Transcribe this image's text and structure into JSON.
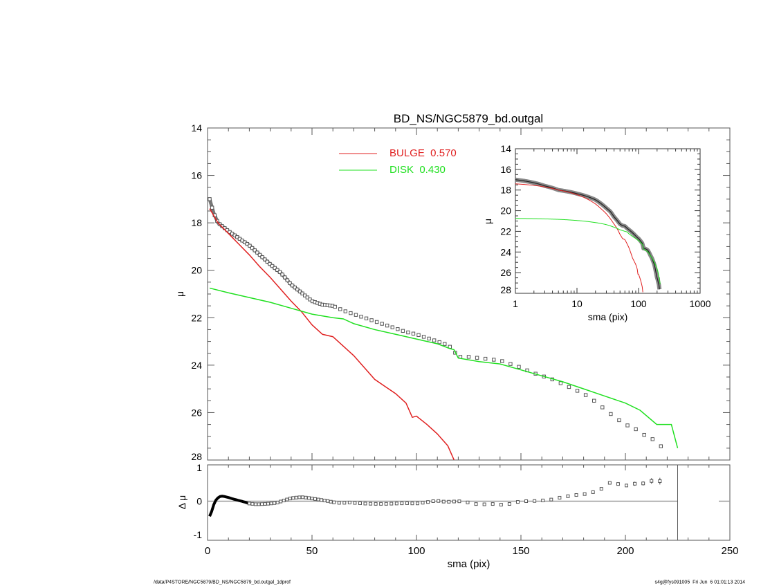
{
  "chart_data": [
    {
      "type": "line",
      "title": "BD_NS/NGC5879_bd.outgal",
      "xlabel": "",
      "ylabel": "μ",
      "xlim": [
        0,
        250
      ],
      "ylim": [
        28,
        14
      ],
      "yticks": [
        "14",
        "16",
        "18",
        "20",
        "22",
        "24",
        "26",
        "28"
      ],
      "legend": {
        "placement": "top-center",
        "entries": [
          {
            "label": "BULGE  0.570",
            "color": "#e02020"
          },
          {
            "label": "DISK  0.430",
            "color": "#20e020"
          }
        ]
      },
      "series": [
        {
          "name": "observed",
          "color": "#555555",
          "style": "squares",
          "x": [
            1,
            3,
            5,
            10,
            15,
            20,
            25,
            30,
            35,
            40,
            45,
            50,
            55,
            60,
            65,
            70,
            75,
            80,
            85,
            90,
            95,
            100,
            105,
            110,
            115,
            117,
            120,
            125,
            130,
            135,
            140,
            145,
            150,
            155,
            160,
            165,
            170,
            175,
            180,
            185,
            190,
            195,
            200,
            205,
            210,
            215,
            220
          ],
          "y": [
            17.0,
            17.6,
            18.0,
            18.35,
            18.65,
            18.95,
            19.35,
            19.75,
            20.1,
            20.6,
            20.95,
            21.3,
            21.45,
            21.5,
            21.7,
            21.85,
            22.0,
            22.15,
            22.3,
            22.45,
            22.6,
            22.7,
            22.85,
            23.0,
            23.15,
            23.3,
            23.65,
            23.65,
            23.7,
            23.75,
            23.8,
            23.95,
            24.1,
            24.3,
            24.45,
            24.6,
            24.8,
            25.0,
            25.2,
            25.5,
            25.85,
            26.2,
            26.5,
            26.7,
            27.0,
            27.2,
            27.75
          ]
        },
        {
          "name": "BULGE",
          "color": "#e02020",
          "x": [
            1,
            5,
            10,
            15,
            20,
            25,
            30,
            35,
            40,
            45,
            50,
            55,
            60,
            65,
            70,
            75,
            80,
            85,
            90,
            95,
            98,
            100,
            105,
            110,
            115,
            118
          ],
          "y": [
            17.4,
            18.0,
            18.45,
            18.9,
            19.35,
            19.85,
            20.3,
            20.8,
            21.3,
            21.75,
            22.3,
            22.7,
            22.8,
            23.2,
            23.6,
            24.1,
            24.6,
            24.9,
            25.2,
            25.6,
            26.2,
            26.15,
            26.5,
            26.9,
            27.4,
            28.0
          ]
        },
        {
          "name": "DISK",
          "color": "#20e020",
          "x": [
            1,
            10,
            20,
            30,
            40,
            50,
            60,
            65,
            70,
            80,
            90,
            100,
            110,
            116,
            118,
            120,
            130,
            140,
            150,
            160,
            170,
            180,
            190,
            200,
            207,
            215,
            222,
            225
          ],
          "y": [
            20.75,
            20.95,
            21.15,
            21.35,
            21.6,
            21.85,
            22.0,
            22.05,
            22.25,
            22.5,
            22.7,
            22.9,
            23.1,
            23.3,
            23.35,
            23.7,
            23.85,
            23.95,
            24.2,
            24.45,
            24.7,
            25.0,
            25.3,
            25.6,
            25.9,
            26.5,
            26.5,
            27.5
          ]
        }
      ]
    },
    {
      "type": "line",
      "name": "inset",
      "xlabel": "sma (pix)",
      "ylabel": "μ",
      "xscale": "log",
      "xlim": [
        1,
        1000
      ],
      "ylim": [
        28,
        14
      ],
      "xticks": [
        "1",
        "10",
        "100",
        "1000"
      ],
      "yticks": [
        "14",
        "16",
        "18",
        "20",
        "22",
        "24",
        "26",
        "28"
      ],
      "series_ref": "same as main panel"
    },
    {
      "type": "scatter",
      "name": "residuals",
      "xlabel": "sma (pix)",
      "ylabel": "Δ μ",
      "xlim": [
        0,
        250
      ],
      "ylim": [
        -1,
        1
      ],
      "xticks": [
        "0",
        "50",
        "100",
        "150",
        "200",
        "250"
      ],
      "yticks": [
        "1",
        "0",
        "-1"
      ],
      "vline_x": 225,
      "x": [
        1,
        2,
        3,
        4,
        5,
        6,
        7,
        8,
        10,
        12,
        15,
        18,
        20,
        23,
        25,
        28,
        30,
        33,
        35,
        38,
        40,
        43,
        45,
        48,
        50,
        53,
        55,
        58,
        60,
        63,
        65,
        68,
        70,
        75,
        80,
        85,
        90,
        95,
        100,
        105,
        108,
        110,
        114,
        118,
        122,
        126,
        130,
        134,
        138,
        142,
        146,
        150,
        154,
        158,
        162,
        166,
        170,
        174,
        178,
        182,
        186,
        190,
        192,
        196,
        200,
        204,
        208,
        212,
        216,
        220
      ],
      "y": [
        -0.45,
        -0.3,
        -0.1,
        0.03,
        0.1,
        0.14,
        0.15,
        0.14,
        0.11,
        0.07,
        0.02,
        -0.03,
        -0.07,
        -0.09,
        -0.09,
        -0.08,
        -0.07,
        -0.05,
        -0.01,
        0.05,
        0.09,
        0.11,
        0.12,
        0.1,
        0.08,
        0.05,
        0.03,
        0.0,
        -0.03,
        -0.05,
        -0.05,
        -0.04,
        -0.05,
        -0.07,
        -0.08,
        -0.08,
        -0.07,
        -0.06,
        -0.07,
        -0.03,
        0.0,
        0.01,
        -0.02,
        -0.01,
        0.0,
        -0.06,
        -0.1,
        -0.09,
        -0.08,
        -0.12,
        -0.06,
        0.0,
        0.0,
        0.01,
        0.03,
        0.06,
        0.13,
        0.16,
        0.2,
        0.22,
        0.3,
        0.41,
        0.55,
        0.52,
        0.46,
        0.52,
        0.52,
        0.6,
        0.63,
        0.37
      ],
      "err": [
        0,
        0,
        0,
        0,
        0,
        0,
        0,
        0,
        0,
        0,
        0,
        0,
        0,
        0,
        0,
        0,
        0,
        0,
        0,
        0,
        0,
        0,
        0,
        0,
        0,
        0,
        0,
        0,
        0,
        0,
        0,
        0,
        0,
        0,
        0,
        0,
        0,
        0,
        0,
        0,
        0,
        0,
        0,
        0,
        0,
        0,
        0,
        0,
        0,
        0,
        0,
        0,
        0,
        0,
        0,
        0,
        0,
        0,
        0,
        0,
        0,
        0,
        0.03,
        0.03,
        0.04,
        0.06,
        0.06,
        0.08,
        0.1,
        0.1
      ]
    }
  ],
  "footer": {
    "left": "/data/P4STORE/NGC5879/BD_NS/NGC5879_bd.outgal_1dprof",
    "right": "s4g@fys091005  Fri Jun  6 01:01:13 2014"
  }
}
